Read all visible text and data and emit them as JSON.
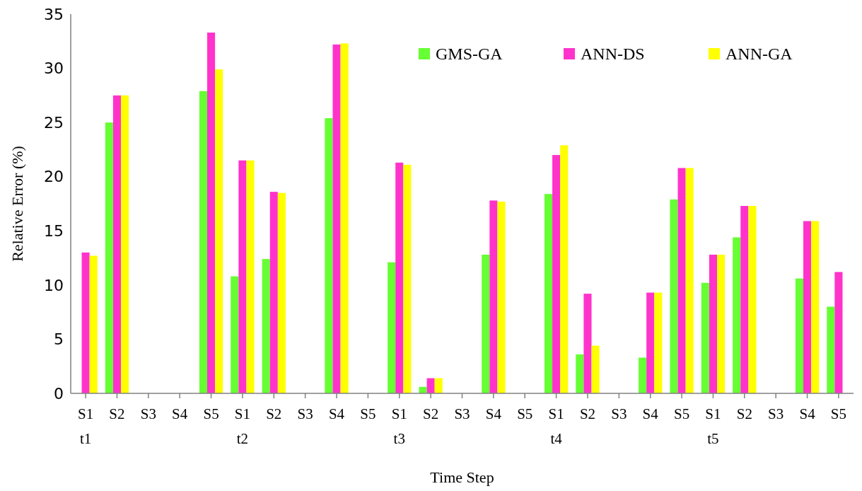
{
  "chart_data": {
    "type": "bar",
    "xlabel": "Time Step",
    "ylabel": "Relative Error (%)",
    "categories": [
      "S1\nt1",
      "S2",
      "S3",
      "S4",
      "S5",
      "S1\nt2",
      "S2",
      "S3",
      "S4",
      "S5",
      "S1\nt3",
      "S2",
      "S3",
      "S4",
      "S5",
      "S1\nt4",
      "S2",
      "S3",
      "S4",
      "S5",
      "S1\nt5",
      "S2",
      "S3",
      "S4",
      "S5"
    ],
    "series": [
      {
        "name": "GMS-GA",
        "color": "#66ff33",
        "values": [
          null,
          25.0,
          null,
          null,
          27.9,
          10.8,
          12.4,
          null,
          25.4,
          null,
          12.1,
          0.6,
          null,
          12.8,
          null,
          18.4,
          3.6,
          null,
          3.3,
          17.9,
          10.2,
          14.4,
          null,
          10.6,
          8.0
        ]
      },
      {
        "name": "ANN-DS",
        "color": "#ff33cc",
        "values": [
          13.0,
          27.5,
          null,
          null,
          33.3,
          21.5,
          18.6,
          null,
          32.2,
          null,
          21.3,
          1.4,
          null,
          17.8,
          null,
          22.0,
          9.2,
          null,
          9.3,
          20.8,
          12.8,
          17.3,
          null,
          15.9,
          11.2
        ]
      },
      {
        "name": "ANN-GA",
        "color": "#ffff00",
        "values": [
          12.7,
          27.5,
          null,
          null,
          29.9,
          21.5,
          18.5,
          null,
          32.3,
          null,
          21.1,
          1.4,
          null,
          17.7,
          null,
          22.9,
          4.4,
          null,
          9.3,
          20.8,
          12.8,
          17.3,
          null,
          15.9,
          null
        ]
      }
    ],
    "ylim": [
      0,
      35
    ],
    "yticks": [
      0,
      5,
      10,
      15,
      20,
      25,
      30,
      35
    ],
    "grid": false,
    "legend": "top right"
  }
}
